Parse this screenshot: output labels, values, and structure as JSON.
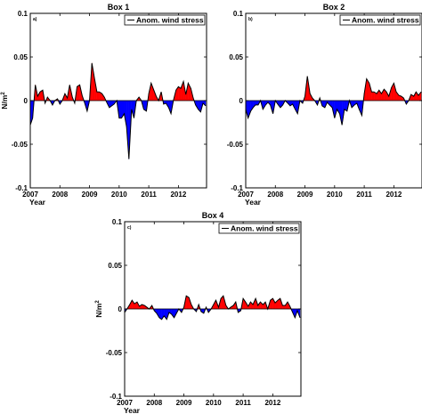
{
  "chart_data": [
    {
      "type": "area",
      "title": "Box 1",
      "panel_label": "a)",
      "xlabel": "Year",
      "ylabel": "N/m",
      "ylabel_sup": "2",
      "xlim": [
        2007,
        2012.95
      ],
      "ylim": [
        -0.1,
        0.1
      ],
      "xticks": [
        "2007",
        "2008",
        "2009",
        "2010",
        "2011",
        "2012"
      ],
      "yticks": [
        "0.1",
        "0.05",
        "0",
        "-0.05",
        "-0.1"
      ],
      "legend": {
        "label": "Anom. wind stress",
        "position": "top-right"
      },
      "colors": {
        "positive": "#ff0000",
        "negative": "#0000ff",
        "line": "#000000"
      },
      "series": [
        {
          "x": [
            2007.0,
            2007.08,
            2007.17,
            2007.25,
            2007.33,
            2007.42,
            2007.5,
            2007.58,
            2007.67,
            2007.75,
            2007.83,
            2007.92,
            2008.0,
            2008.08,
            2008.17,
            2008.25,
            2008.33,
            2008.42,
            2008.5,
            2008.58,
            2008.67,
            2008.75,
            2008.83,
            2008.92,
            2009.0,
            2009.08,
            2009.17,
            2009.25,
            2009.33,
            2009.42,
            2009.5,
            2009.58,
            2009.67,
            2009.75,
            2009.83,
            2009.92,
            2010.0,
            2010.08,
            2010.17,
            2010.25,
            2010.33,
            2010.42,
            2010.5,
            2010.58,
            2010.67,
            2010.75,
            2010.83,
            2010.92,
            2011.0,
            2011.08,
            2011.17,
            2011.25,
            2011.33,
            2011.42,
            2011.5,
            2011.58,
            2011.67,
            2011.75,
            2011.83,
            2011.92,
            2012.0,
            2012.08,
            2012.17,
            2012.25,
            2012.33,
            2012.42,
            2012.5,
            2012.58,
            2012.67,
            2012.75,
            2012.83,
            2012.92
          ],
          "y": [
            -0.028,
            -0.02,
            0.018,
            0.005,
            0.01,
            0.012,
            -0.003,
            0.004,
            0.0,
            -0.005,
            0.0,
            0.002,
            -0.004,
            0.0,
            0.008,
            0.003,
            0.018,
            0.004,
            -0.003,
            0.016,
            0.018,
            0.006,
            -0.002,
            -0.012,
            0.0,
            0.043,
            0.025,
            0.01,
            0.01,
            0.008,
            0.004,
            -0.002,
            -0.008,
            -0.006,
            -0.004,
            0.0,
            -0.02,
            -0.02,
            -0.015,
            -0.03,
            -0.067,
            -0.01,
            -0.02,
            0.0,
            0.004,
            0.0,
            -0.01,
            -0.012,
            0.008,
            0.02,
            0.012,
            0.005,
            0.0,
            0.01,
            -0.004,
            -0.003,
            -0.008,
            -0.015,
            0.0,
            0.012,
            0.016,
            0.014,
            0.022,
            0.007,
            0.02,
            0.014,
            0.003,
            -0.005,
            -0.01,
            -0.013,
            -0.003,
            -0.006
          ]
        }
      ]
    },
    {
      "type": "area",
      "title": "Box 2",
      "panel_label": "b)",
      "xlabel": "Year",
      "ylabel": "",
      "xlim": [
        2007,
        2012.95
      ],
      "ylim": [
        -0.1,
        0.1
      ],
      "xticks": [
        "2007",
        "2008",
        "2009",
        "2010",
        "2011",
        "2012"
      ],
      "yticks": [
        "0.1",
        "0.05",
        "0",
        "-0.05",
        "-0.1"
      ],
      "legend": {
        "label": "Anom. wind stress",
        "position": "top-right"
      },
      "colors": {
        "positive": "#ff0000",
        "negative": "#0000ff",
        "line": "#000000"
      },
      "series": [
        {
          "x": [
            2007.0,
            2007.08,
            2007.17,
            2007.25,
            2007.33,
            2007.42,
            2007.5,
            2007.58,
            2007.67,
            2007.75,
            2007.83,
            2007.92,
            2008.0,
            2008.08,
            2008.17,
            2008.25,
            2008.33,
            2008.42,
            2008.5,
            2008.58,
            2008.67,
            2008.75,
            2008.83,
            2008.92,
            2009.0,
            2009.08,
            2009.17,
            2009.25,
            2009.33,
            2009.42,
            2009.5,
            2009.58,
            2009.67,
            2009.75,
            2009.83,
            2009.92,
            2010.0,
            2010.08,
            2010.17,
            2010.25,
            2010.33,
            2010.42,
            2010.5,
            2010.58,
            2010.67,
            2010.75,
            2010.83,
            2010.92,
            2011.0,
            2011.08,
            2011.17,
            2011.25,
            2011.33,
            2011.42,
            2011.5,
            2011.58,
            2011.67,
            2011.75,
            2011.83,
            2011.92,
            2012.0,
            2012.08,
            2012.17,
            2012.25,
            2012.33,
            2012.42,
            2012.5,
            2012.58,
            2012.67,
            2012.75,
            2012.83,
            2012.92
          ],
          "y": [
            -0.01,
            -0.02,
            -0.012,
            -0.008,
            -0.005,
            -0.005,
            0.0,
            -0.01,
            -0.005,
            -0.002,
            -0.005,
            -0.015,
            0.0,
            -0.004,
            -0.008,
            -0.005,
            0.0,
            -0.003,
            -0.006,
            -0.004,
            -0.01,
            -0.015,
            0.0,
            -0.003,
            0.005,
            0.028,
            0.008,
            0.003,
            0.0,
            -0.005,
            0.003,
            -0.006,
            -0.008,
            -0.002,
            -0.005,
            -0.008,
            -0.02,
            -0.01,
            -0.015,
            -0.028,
            -0.01,
            -0.012,
            0.0,
            -0.008,
            -0.005,
            -0.003,
            -0.01,
            -0.017,
            0.008,
            0.025,
            0.02,
            0.01,
            0.01,
            0.008,
            0.012,
            0.008,
            0.013,
            0.01,
            0.005,
            0.015,
            0.02,
            0.01,
            0.006,
            0.005,
            0.003,
            -0.004,
            0.0,
            0.007,
            0.005,
            0.01,
            0.006,
            0.01
          ]
        }
      ]
    },
    {
      "type": "area",
      "title": "Box 4",
      "panel_label": "c)",
      "xlabel": "Year",
      "ylabel": "N/m",
      "ylabel_sup": "2",
      "xlim": [
        2007,
        2012.95
      ],
      "ylim": [
        -0.1,
        0.1
      ],
      "xticks": [
        "2007",
        "2008",
        "2009",
        "2010",
        "2011",
        "2012"
      ],
      "yticks": [
        "0.1",
        "0.05",
        "0",
        "-0.05",
        "-0.1"
      ],
      "legend": {
        "label": "Anom. wind stress",
        "position": "top-right"
      },
      "colors": {
        "positive": "#ff0000",
        "negative": "#0000ff",
        "line": "#000000"
      },
      "series": [
        {
          "x": [
            2007.0,
            2007.08,
            2007.17,
            2007.25,
            2007.33,
            2007.42,
            2007.5,
            2007.58,
            2007.67,
            2007.75,
            2007.83,
            2007.92,
            2008.0,
            2008.08,
            2008.17,
            2008.25,
            2008.33,
            2008.42,
            2008.5,
            2008.58,
            2008.67,
            2008.75,
            2008.83,
            2008.92,
            2009.0,
            2009.08,
            2009.17,
            2009.25,
            2009.33,
            2009.42,
            2009.5,
            2009.58,
            2009.67,
            2009.75,
            2009.83,
            2009.92,
            2010.0,
            2010.08,
            2010.17,
            2010.25,
            2010.33,
            2010.42,
            2010.5,
            2010.58,
            2010.67,
            2010.75,
            2010.83,
            2010.92,
            2011.0,
            2011.08,
            2011.17,
            2011.25,
            2011.33,
            2011.42,
            2011.5,
            2011.58,
            2011.67,
            2011.75,
            2011.83,
            2011.92,
            2012.0,
            2012.08,
            2012.17,
            2012.25,
            2012.33,
            2012.42,
            2012.5,
            2012.58,
            2012.67,
            2012.75,
            2012.83,
            2012.92
          ],
          "y": [
            -0.004,
            0.0,
            0.005,
            0.01,
            0.006,
            0.008,
            0.003,
            0.005,
            0.004,
            0.002,
            0.0,
            0.004,
            -0.002,
            -0.005,
            -0.01,
            -0.012,
            -0.008,
            -0.012,
            -0.004,
            -0.006,
            -0.01,
            -0.005,
            0.0,
            -0.004,
            0.002,
            0.015,
            0.013,
            0.005,
            0.0,
            -0.003,
            0.005,
            -0.003,
            -0.005,
            0.002,
            -0.004,
            0.0,
            0.005,
            0.01,
            0.002,
            0.012,
            0.015,
            0.004,
            0.0,
            0.002,
            0.004,
            0.008,
            -0.004,
            -0.002,
            0.012,
            0.008,
            0.003,
            0.008,
            0.005,
            0.012,
            0.004,
            0.008,
            0.005,
            0.008,
            0.0,
            0.01,
            0.012,
            0.007,
            0.01,
            0.012,
            0.004,
            0.004,
            0.008,
            0.003,
            -0.004,
            -0.01,
            -0.002,
            -0.01
          ]
        }
      ]
    }
  ]
}
